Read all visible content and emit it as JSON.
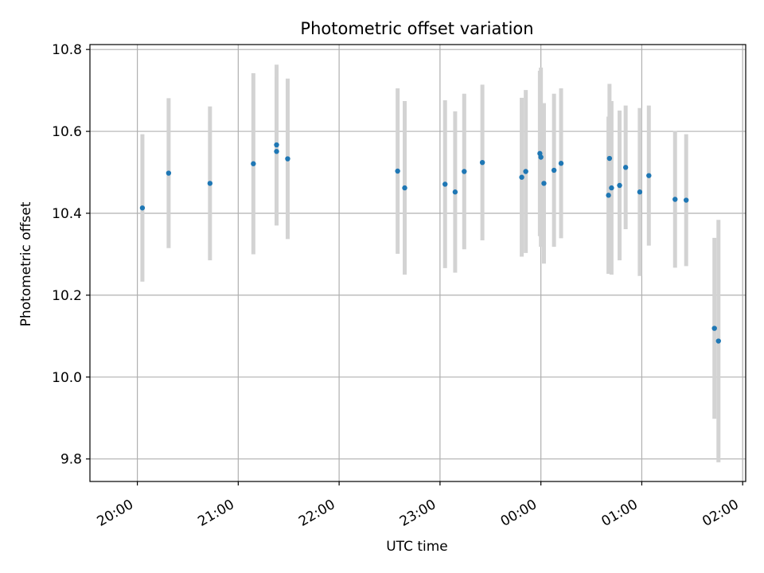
{
  "chart_data": {
    "type": "scatter",
    "title": "Photometric offset variation",
    "xlabel": "UTC time",
    "ylabel": "Photometric offset",
    "x_unit": "hours (UTC, continuous past midnight)",
    "xlim": [
      19.53,
      26.03
    ],
    "ylim": [
      9.745,
      10.812
    ],
    "x_ticks": [
      {
        "value": 20,
        "label": "20:00"
      },
      {
        "value": 21,
        "label": "21:00"
      },
      {
        "value": 22,
        "label": "22:00"
      },
      {
        "value": 23,
        "label": "23:00"
      },
      {
        "value": 24,
        "label": "00:00"
      },
      {
        "value": 25,
        "label": "01:00"
      },
      {
        "value": 26,
        "label": "02:00"
      }
    ],
    "y_ticks": [
      {
        "value": 9.8,
        "label": "9.8"
      },
      {
        "value": 10.0,
        "label": "10.0"
      },
      {
        "value": 10.2,
        "label": "10.2"
      },
      {
        "value": 10.4,
        "label": "10.4"
      },
      {
        "value": 10.6,
        "label": "10.6"
      },
      {
        "value": 10.8,
        "label": "10.8"
      }
    ],
    "grid": true,
    "marker_color": "#1f77b4",
    "errorbar_color": "#d3d3d3",
    "points": [
      {
        "x": 20.05,
        "y": 10.413,
        "err": 0.18
      },
      {
        "x": 20.31,
        "y": 10.498,
        "err": 0.183
      },
      {
        "x": 20.72,
        "y": 10.473,
        "err": 0.188
      },
      {
        "x": 21.15,
        "y": 10.521,
        "err": 0.221
      },
      {
        "x": 21.38,
        "y": 10.567,
        "err": 0.196
      },
      {
        "x": 21.38,
        "y": 10.551,
        "err": 0.181
      },
      {
        "x": 21.49,
        "y": 10.533,
        "err": 0.196
      },
      {
        "x": 22.58,
        "y": 10.503,
        "err": 0.202
      },
      {
        "x": 22.65,
        "y": 10.462,
        "err": 0.212
      },
      {
        "x": 23.05,
        "y": 10.471,
        "err": 0.205
      },
      {
        "x": 23.15,
        "y": 10.452,
        "err": 0.197
      },
      {
        "x": 23.24,
        "y": 10.502,
        "err": 0.19
      },
      {
        "x": 23.42,
        "y": 10.524,
        "err": 0.19
      },
      {
        "x": 23.81,
        "y": 10.488,
        "err": 0.194
      },
      {
        "x": 23.85,
        "y": 10.502,
        "err": 0.199
      },
      {
        "x": 23.99,
        "y": 10.546,
        "err": 0.202
      },
      {
        "x": 24.0,
        "y": 10.537,
        "err": 0.219
      },
      {
        "x": 24.03,
        "y": 10.473,
        "err": 0.196
      },
      {
        "x": 24.13,
        "y": 10.505,
        "err": 0.187
      },
      {
        "x": 24.2,
        "y": 10.522,
        "err": 0.183
      },
      {
        "x": 24.67,
        "y": 10.444,
        "err": 0.192
      },
      {
        "x": 24.68,
        "y": 10.534,
        "err": 0.182
      },
      {
        "x": 24.7,
        "y": 10.462,
        "err": 0.212
      },
      {
        "x": 24.78,
        "y": 10.468,
        "err": 0.183
      },
      {
        "x": 24.84,
        "y": 10.512,
        "err": 0.151
      },
      {
        "x": 24.98,
        "y": 10.452,
        "err": 0.205
      },
      {
        "x": 25.07,
        "y": 10.492,
        "err": 0.171
      },
      {
        "x": 25.33,
        "y": 10.434,
        "err": 0.167
      },
      {
        "x": 25.44,
        "y": 10.432,
        "err": 0.161
      },
      {
        "x": 25.72,
        "y": 10.119,
        "err": 0.221
      },
      {
        "x": 25.76,
        "y": 10.088,
        "err": 0.296
      }
    ]
  }
}
